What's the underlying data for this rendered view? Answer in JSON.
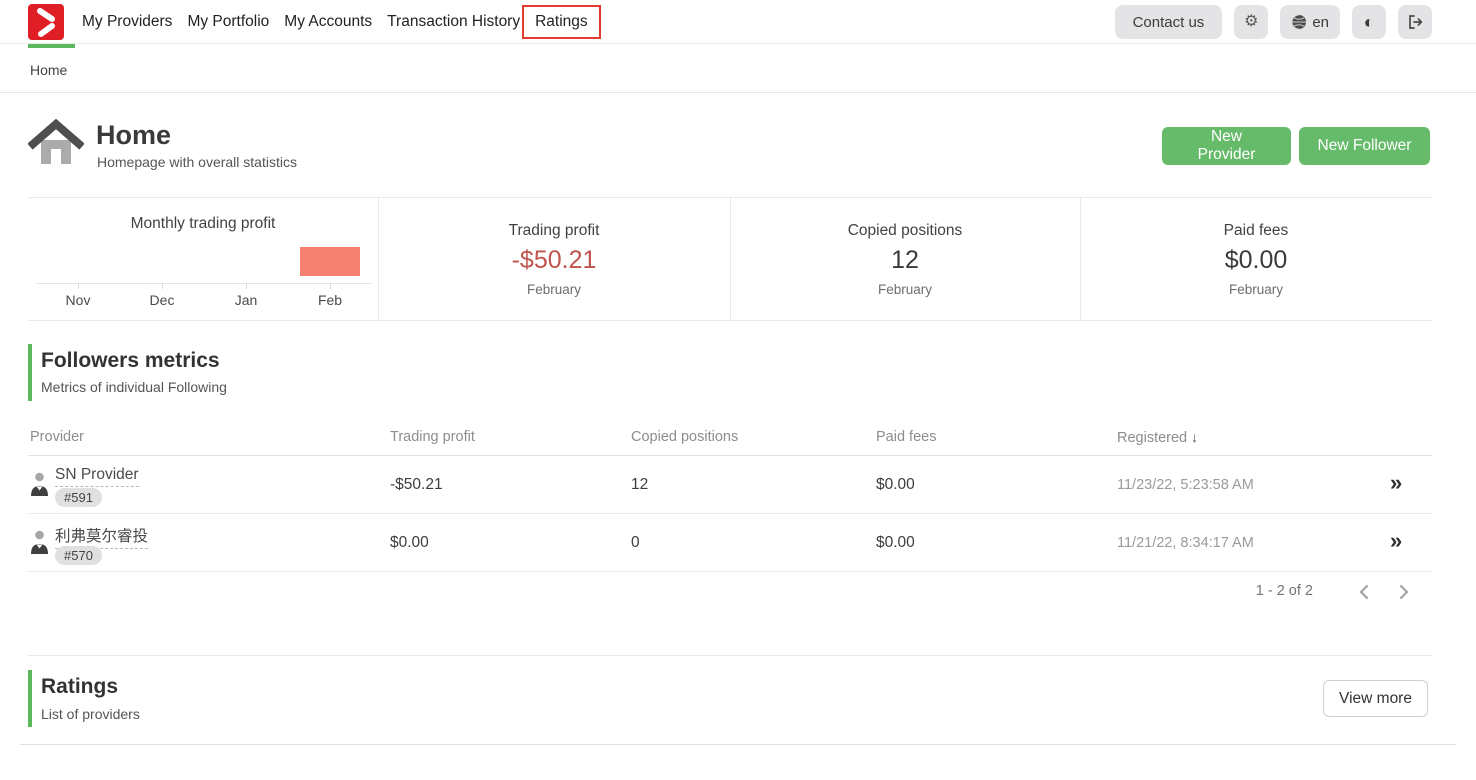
{
  "header": {
    "nav_items": [
      {
        "label": "My Providers",
        "highlighted": false
      },
      {
        "label": "My Portfolio",
        "highlighted": false
      },
      {
        "label": "My Accounts",
        "highlighted": false
      },
      {
        "label": "Transaction History",
        "highlighted": false
      },
      {
        "label": "Ratings",
        "highlighted": true
      }
    ],
    "contact_button": "Contact us",
    "language": "en"
  },
  "icons": {
    "gear": "⚙",
    "contrast": "◐",
    "sort_desc": "↓",
    "double_chevron": "»"
  },
  "breadcrumb": {
    "current": "Home"
  },
  "page_header": {
    "title": "Home",
    "subtitle": "Homepage with overall statistics",
    "new_provider_label": "New Provider",
    "new_follower_label": "New Follower"
  },
  "chart_data": {
    "type": "bar",
    "title": "Monthly trading profit",
    "categories": [
      "Nov",
      "Dec",
      "Jan",
      "Feb"
    ],
    "values": [
      0,
      0,
      0,
      -50.21
    ],
    "xlabel": "",
    "ylabel": "",
    "legend": false,
    "grid": false,
    "bar_color": "#f48170"
  },
  "stats_cards": [
    {
      "label": "Trading profit",
      "value": "-$50.21",
      "period": "February",
      "negative": true
    },
    {
      "label": "Copied positions",
      "value": "12",
      "period": "February",
      "negative": false
    },
    {
      "label": "Paid fees",
      "value": "$0.00",
      "period": "February",
      "negative": false
    }
  ],
  "followers": {
    "title": "Followers metrics",
    "subtitle": "Metrics of individual Following",
    "columns": [
      "Provider",
      "Trading profit",
      "Copied positions",
      "Paid fees",
      "Registered"
    ],
    "rows": [
      {
        "name": "SN Provider",
        "id": "#591",
        "trading_profit": "-$50.21",
        "copied_positions": "12",
        "paid_fees": "$0.00",
        "registered": "11/23/22, 5:23:58 AM"
      },
      {
        "name": "利弗莫尔睿投",
        "id": "#570",
        "trading_profit": "$0.00",
        "copied_positions": "0",
        "paid_fees": "$0.00",
        "registered": "11/21/22, 8:34:17 AM"
      }
    ],
    "pagination": "1 - 2 of 2"
  },
  "ratings": {
    "title": "Ratings",
    "subtitle": "List of providers",
    "view_more_label": "View more"
  },
  "colors": {
    "accent_green": "#5cb85c",
    "button_green": "#66bb6a",
    "negative_red": "#c0544c",
    "bar_salmon": "#f48170",
    "logo_red": "#e01e25",
    "annotation_red": "#e23b2e"
  }
}
